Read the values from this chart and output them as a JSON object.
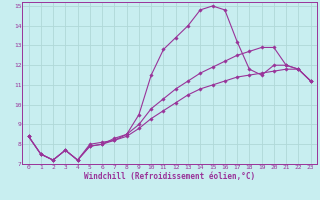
{
  "xlabel": "Windchill (Refroidissement éolien,°C)",
  "bg_color": "#c8eef0",
  "grid_color": "#b0d8d8",
  "line_color": "#993399",
  "xlim": [
    -0.5,
    23.5
  ],
  "ylim": [
    7,
    15.2
  ],
  "xticks": [
    0,
    1,
    2,
    3,
    4,
    5,
    6,
    7,
    8,
    9,
    10,
    11,
    12,
    13,
    14,
    15,
    16,
    17,
    18,
    19,
    20,
    21,
    22,
    23
  ],
  "yticks": [
    7,
    8,
    9,
    10,
    11,
    12,
    13,
    14,
    15
  ],
  "curve1_x": [
    0,
    1,
    2,
    3,
    4,
    5,
    6,
    7,
    8,
    9,
    10,
    11,
    12,
    13,
    14,
    15,
    16,
    17,
    18,
    19,
    20,
    21,
    22,
    23
  ],
  "curve1_y": [
    8.4,
    7.5,
    7.2,
    7.7,
    7.2,
    8.0,
    8.1,
    8.2,
    8.5,
    9.5,
    11.5,
    12.8,
    13.4,
    14.0,
    14.8,
    15.0,
    14.8,
    13.2,
    11.8,
    11.5,
    12.0,
    12.0,
    11.8,
    11.2
  ],
  "curve2_x": [
    0,
    1,
    2,
    3,
    4,
    5,
    6,
    7,
    8,
    9,
    10,
    11,
    12,
    13,
    14,
    15,
    16,
    17,
    18,
    19,
    20,
    21,
    22,
    23
  ],
  "curve2_y": [
    8.4,
    7.5,
    7.2,
    7.7,
    7.2,
    7.9,
    8.0,
    8.3,
    8.5,
    9.0,
    9.8,
    10.3,
    10.8,
    11.2,
    11.6,
    11.9,
    12.2,
    12.5,
    12.7,
    12.9,
    12.9,
    12.0,
    11.8,
    11.2
  ],
  "curve3_x": [
    0,
    1,
    2,
    3,
    4,
    5,
    6,
    7,
    8,
    9,
    10,
    11,
    12,
    13,
    14,
    15,
    16,
    17,
    18,
    19,
    20,
    21,
    22,
    23
  ],
  "curve3_y": [
    8.4,
    7.5,
    7.2,
    7.7,
    7.2,
    7.9,
    8.0,
    8.2,
    8.4,
    8.8,
    9.3,
    9.7,
    10.1,
    10.5,
    10.8,
    11.0,
    11.2,
    11.4,
    11.5,
    11.6,
    11.7,
    11.8,
    11.8,
    11.2
  ]
}
